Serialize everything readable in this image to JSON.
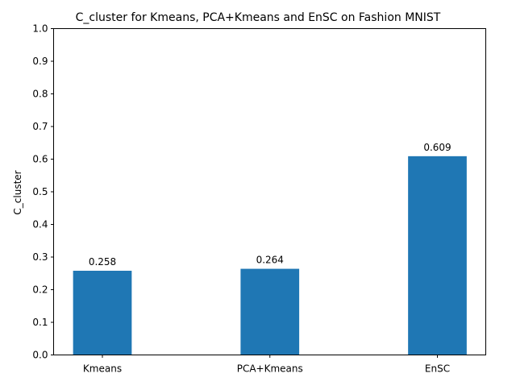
{
  "chart_data": {
    "type": "bar",
    "title": "C_cluster for Kmeans, PCA+Kmeans and EnSC on Fashion MNIST",
    "xlabel": "",
    "ylabel": "C_cluster",
    "categories": [
      "Kmeans",
      "PCA+Kmeans",
      "EnSC"
    ],
    "values": [
      0.258,
      0.264,
      0.609
    ],
    "value_labels": [
      "0.258",
      "0.264",
      "0.609"
    ],
    "ylim": [
      0.0,
      1.0
    ],
    "yticks": [
      "0.0",
      "0.1",
      "0.2",
      "0.3",
      "0.4",
      "0.5",
      "0.6",
      "0.7",
      "0.8",
      "0.9",
      "1.0"
    ],
    "grid": false,
    "bar_color": "#1f77b4"
  }
}
